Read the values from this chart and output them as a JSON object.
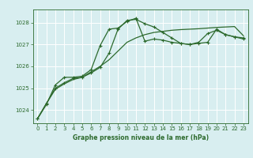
{
  "bg_color": "#d8eef0",
  "grid_color": "#ffffff",
  "line_color": "#2d6a2d",
  "title": "Graphe pression niveau de la mer (hPa)",
  "xlim": [
    -0.5,
    23.5
  ],
  "ylim": [
    1023.4,
    1028.6
  ],
  "yticks": [
    1024,
    1025,
    1026,
    1027,
    1028
  ],
  "xticks": [
    0,
    1,
    2,
    3,
    4,
    5,
    6,
    7,
    8,
    9,
    10,
    11,
    12,
    13,
    14,
    15,
    16,
    17,
    18,
    19,
    20,
    21,
    22,
    23
  ],
  "series1_x": [
    0,
    1,
    2,
    3,
    4,
    5,
    6,
    7,
    8,
    9,
    10,
    11,
    12,
    13,
    14,
    15,
    16,
    17,
    18,
    19,
    20,
    21,
    22,
    23
  ],
  "series1_y": [
    1023.6,
    1024.3,
    1024.95,
    1025.2,
    1025.4,
    1025.5,
    1025.75,
    1026.0,
    1026.3,
    1026.7,
    1027.1,
    1027.3,
    1027.45,
    1027.55,
    1027.6,
    1027.65,
    1027.68,
    1027.7,
    1027.72,
    1027.75,
    1027.78,
    1027.8,
    1027.82,
    1027.4
  ],
  "series2_x": [
    0,
    1,
    2,
    3,
    4,
    5,
    6,
    7,
    8,
    9,
    10,
    11,
    12,
    13,
    14,
    15,
    16,
    17,
    18,
    19,
    20,
    21,
    22,
    23
  ],
  "series2_y": [
    1023.6,
    1024.3,
    1025.0,
    1025.25,
    1025.45,
    1025.5,
    1025.7,
    1025.95,
    1026.6,
    1027.7,
    1028.1,
    1028.15,
    1027.95,
    1027.8,
    1027.55,
    1027.3,
    1027.05,
    1027.0,
    1027.1,
    1027.5,
    1027.65,
    1027.45,
    1027.35,
    1027.25
  ],
  "series3_x": [
    0,
    1,
    2,
    3,
    4,
    5,
    6,
    7,
    8,
    9,
    10,
    11,
    12,
    13,
    14,
    15,
    16,
    17,
    18,
    19,
    20,
    21,
    22,
    23
  ],
  "series3_y": [
    1023.6,
    1024.25,
    1025.15,
    1025.5,
    1025.5,
    1025.55,
    1025.85,
    1026.95,
    1027.7,
    1027.75,
    1028.05,
    1028.2,
    1027.15,
    1027.25,
    1027.2,
    1027.1,
    1027.05,
    1027.0,
    1027.05,
    1027.1,
    1027.7,
    1027.45,
    1027.35,
    1027.3
  ],
  "tick_fontsize": 5,
  "label_fontsize": 5.5,
  "lw": 0.9,
  "marker_size": 3
}
